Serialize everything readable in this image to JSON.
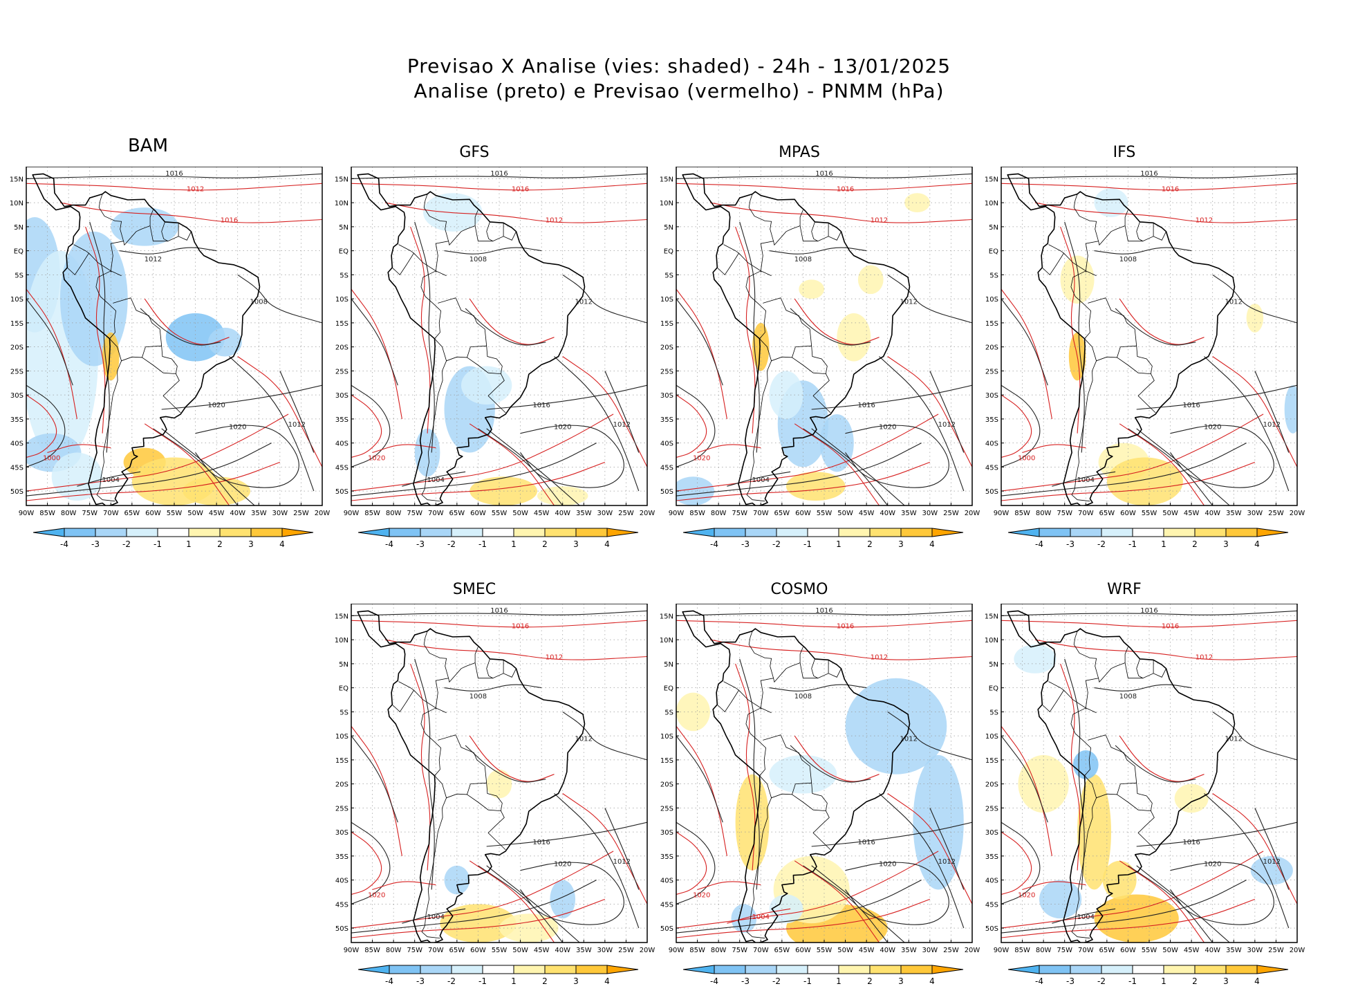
{
  "header": {
    "line1": "Previsao X Analise (vies: shaded) - 24h - 13/01/2025",
    "line2": "Analise (preto) e Previsao (vermelho) - PNMM (hPa)"
  },
  "lat_labels": [
    "15N",
    "10N",
    "5N",
    "EQ",
    "5S",
    "10S",
    "15S",
    "20S",
    "25S",
    "30S",
    "35S",
    "40S",
    "45S",
    "50S"
  ],
  "lon_labels": [
    "90W",
    "85W",
    "80W",
    "75W",
    "70W",
    "65W",
    "60W",
    "55W",
    "50W",
    "45W",
    "40W",
    "35W",
    "30W",
    "25W",
    "20W"
  ],
  "colorbar": {
    "labels": [
      "-4",
      "-3",
      "-2",
      "-1",
      "1",
      "2",
      "3",
      "4"
    ],
    "colors": [
      "#4fb3f0",
      "#7fc3f4",
      "#a9d6f7",
      "#d6f0fb",
      "#ffffff",
      "#fff5b0",
      "#ffe270",
      "#ffc83a",
      "#ffa500"
    ]
  },
  "panels": [
    {
      "name": "BAM",
      "isobars": [
        {
          "t": "1016",
          "c": "k"
        },
        {
          "t": "1012",
          "c": "r"
        },
        {
          "t": "1016",
          "c": "r"
        },
        {
          "t": "1012",
          "c": "k"
        },
        {
          "t": "1008",
          "c": "k"
        },
        {
          "t": "1020",
          "c": "k"
        },
        {
          "t": "1020",
          "c": "k"
        },
        {
          "t": "1004",
          "c": "k"
        },
        {
          "t": "1000",
          "c": "r"
        },
        {
          "t": "1012",
          "c": "k"
        }
      ]
    },
    {
      "name": "GFS",
      "isobars": [
        {
          "t": "1016",
          "c": "k"
        },
        {
          "t": "1016",
          "c": "r"
        },
        {
          "t": "1012",
          "c": "r"
        },
        {
          "t": "1008",
          "c": "k"
        },
        {
          "t": "1012",
          "c": "k"
        },
        {
          "t": "1020",
          "c": "k"
        },
        {
          "t": "1016",
          "c": "k"
        },
        {
          "t": "1004",
          "c": "k"
        },
        {
          "t": "1020",
          "c": "r"
        },
        {
          "t": "1012",
          "c": "k"
        }
      ]
    },
    {
      "name": "MPAS",
      "isobars": [
        {
          "t": "1016",
          "c": "k"
        },
        {
          "t": "1016",
          "c": "r"
        },
        {
          "t": "1012",
          "c": "r"
        },
        {
          "t": "1008",
          "c": "k"
        },
        {
          "t": "1012",
          "c": "k"
        },
        {
          "t": "1020",
          "c": "k"
        },
        {
          "t": "1016",
          "c": "k"
        },
        {
          "t": "1004",
          "c": "k"
        },
        {
          "t": "1020",
          "c": "r"
        },
        {
          "t": "1012",
          "c": "k"
        }
      ]
    },
    {
      "name": "IFS",
      "isobars": [
        {
          "t": "1016",
          "c": "k"
        },
        {
          "t": "1016",
          "c": "r"
        },
        {
          "t": "1012",
          "c": "r"
        },
        {
          "t": "1008",
          "c": "k"
        },
        {
          "t": "1012",
          "c": "k"
        },
        {
          "t": "1020",
          "c": "k"
        },
        {
          "t": "1016",
          "c": "k"
        },
        {
          "t": "1004",
          "c": "k"
        },
        {
          "t": "1000",
          "c": "r"
        },
        {
          "t": "1012",
          "c": "k"
        }
      ]
    },
    {
      "name": "SMEC",
      "isobars": [
        {
          "t": "1016",
          "c": "k"
        },
        {
          "t": "1016",
          "c": "r"
        },
        {
          "t": "1012",
          "c": "r"
        },
        {
          "t": "1008",
          "c": "k"
        },
        {
          "t": "1012",
          "c": "k"
        },
        {
          "t": "1020",
          "c": "k"
        },
        {
          "t": "1016",
          "c": "k"
        },
        {
          "t": "1004",
          "c": "k"
        },
        {
          "t": "1020",
          "c": "r"
        },
        {
          "t": "1012",
          "c": "k"
        }
      ]
    },
    {
      "name": "COSMO",
      "isobars": [
        {
          "t": "1016",
          "c": "k"
        },
        {
          "t": "1016",
          "c": "r"
        },
        {
          "t": "1012",
          "c": "r"
        },
        {
          "t": "1008",
          "c": "k"
        },
        {
          "t": "1012",
          "c": "k"
        },
        {
          "t": "1020",
          "c": "k"
        },
        {
          "t": "1016",
          "c": "k"
        },
        {
          "t": "1004",
          "c": "r"
        },
        {
          "t": "1020",
          "c": "r"
        },
        {
          "t": "1012",
          "c": "k"
        }
      ]
    },
    {
      "name": "WRF",
      "isobars": [
        {
          "t": "1016",
          "c": "k"
        },
        {
          "t": "1016",
          "c": "r"
        },
        {
          "t": "1012",
          "c": "r"
        },
        {
          "t": "1008",
          "c": "k"
        },
        {
          "t": "1012",
          "c": "k"
        },
        {
          "t": "1020",
          "c": "k"
        },
        {
          "t": "1016",
          "c": "k"
        },
        {
          "t": "1004",
          "c": "k"
        },
        {
          "t": "1020",
          "c": "r"
        },
        {
          "t": "1012",
          "c": "k"
        }
      ]
    }
  ]
}
